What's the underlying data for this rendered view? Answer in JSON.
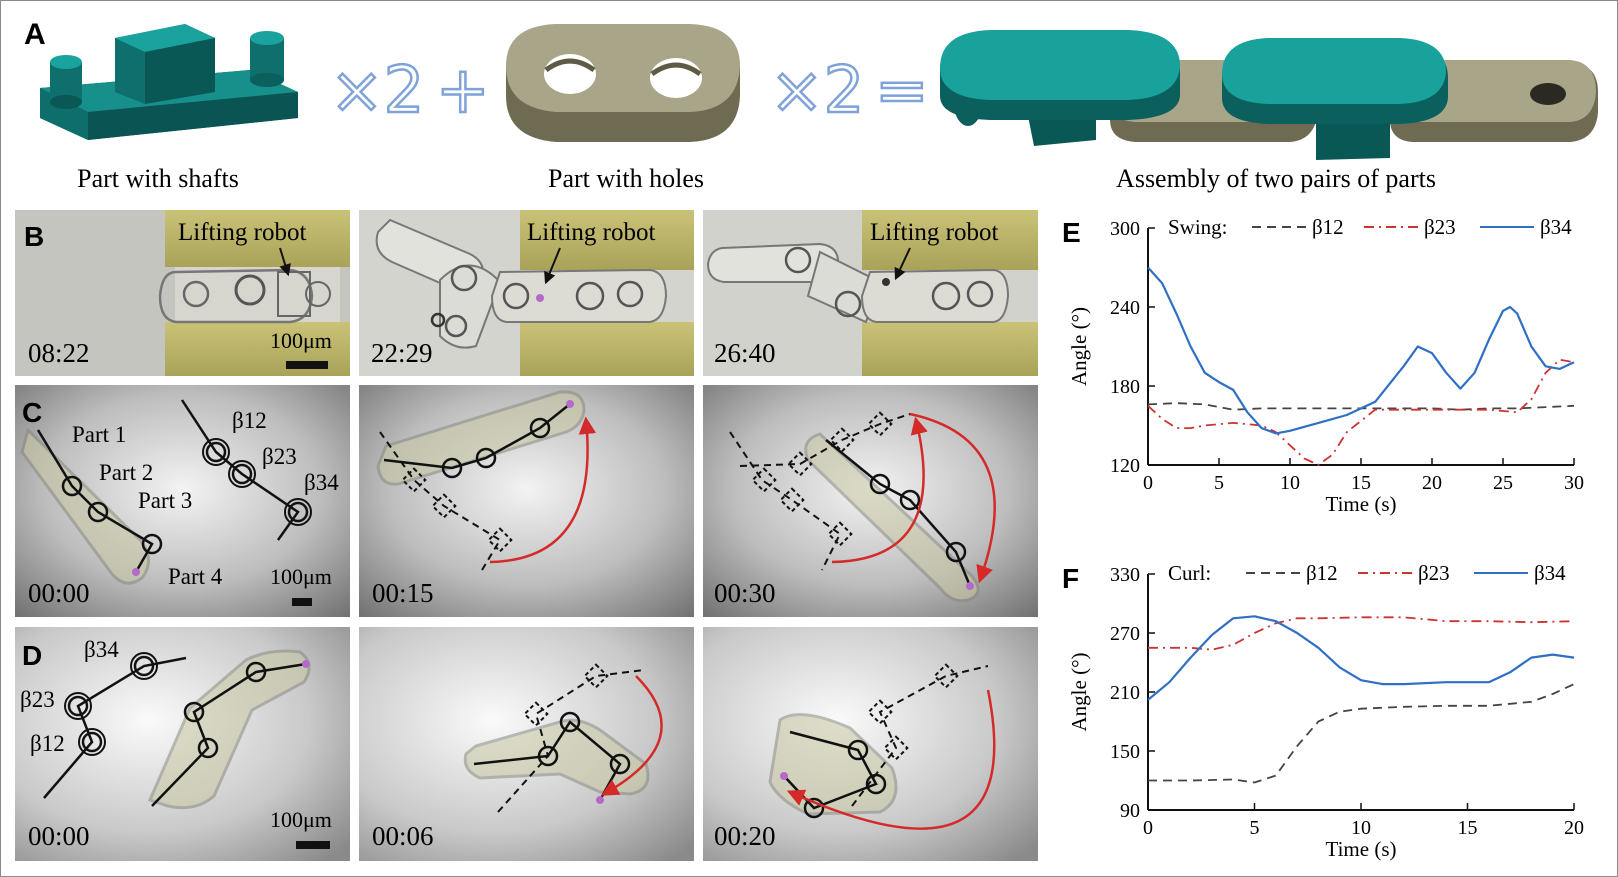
{
  "panelA": {
    "letter": "A",
    "op_times1": "×2",
    "op_plus": "+",
    "op_times2": "×2",
    "op_equals": "=",
    "caption_shafts": "Part with shafts",
    "caption_holes": "Part with holes",
    "caption_assembly": "Assembly of two pairs of  parts"
  },
  "panelB": {
    "letter": "B",
    "frames": [
      {
        "label": "Lifting robot",
        "time": "08:22",
        "scale": "100μm"
      },
      {
        "label": "Lifting robot",
        "time": "22:29"
      },
      {
        "label": "Lifting robot",
        "time": "26:40"
      }
    ]
  },
  "panelC": {
    "letter": "C",
    "parts": [
      "Part 1",
      "Part 2",
      "Part 3",
      "Part 4"
    ],
    "angles": [
      "β12",
      "β23",
      "β34"
    ],
    "scale": "100μm",
    "times": [
      "00:00",
      "00:15",
      "00:30"
    ]
  },
  "panelD": {
    "letter": "D",
    "angles": [
      "β34",
      "β23",
      "β12"
    ],
    "scale": "100μm",
    "times": [
      "00:00",
      "00:06",
      "00:20"
    ]
  },
  "colors": {
    "teal": "#0f7d7b",
    "khaki": "#8e8a6e",
    "red_arrow": "#d42a2a",
    "series_b12": "#444444",
    "series_b23": "#cc3333",
    "series_b34": "#2f6fc4"
  },
  "chart_data": [
    {
      "panel": "E",
      "type": "line",
      "legend_title": "Swing:",
      "xlabel": "Time (s)",
      "ylabel": "Angle (°)",
      "xlim": [
        0,
        30
      ],
      "ylim": [
        120,
        300
      ],
      "xticks": [
        0,
        5,
        10,
        15,
        20,
        25,
        30
      ],
      "yticks": [
        120,
        180,
        240,
        300
      ],
      "legend_position": "top",
      "series": [
        {
          "name": "β12",
          "style": "dashed",
          "x": [
            0,
            2,
            4,
            6,
            8,
            10,
            12,
            14,
            16,
            18,
            20,
            22,
            24,
            26,
            28,
            30
          ],
          "y": [
            166,
            167,
            166,
            162,
            163,
            163,
            163,
            163,
            163,
            163,
            163,
            162,
            163,
            163,
            164,
            165
          ]
        },
        {
          "name": "β23",
          "style": "dash-dot",
          "x": [
            0,
            1,
            2,
            3,
            4,
            6,
            8,
            9,
            10,
            11,
            12,
            13,
            14,
            16,
            20,
            24,
            26,
            27,
            28,
            29,
            30
          ],
          "y": [
            165,
            155,
            148,
            148,
            150,
            152,
            150,
            145,
            135,
            125,
            120,
            128,
            145,
            162,
            162,
            162,
            160,
            170,
            190,
            200,
            198
          ]
        },
        {
          "name": "β34",
          "style": "solid",
          "x": [
            0,
            1,
            2,
            3,
            4,
            5,
            6,
            7,
            8,
            9,
            10,
            12,
            14,
            16,
            18,
            19,
            20,
            21,
            22,
            23,
            24,
            25,
            25.5,
            26,
            27,
            28,
            29,
            30
          ],
          "y": [
            270,
            258,
            235,
            210,
            190,
            183,
            177,
            160,
            148,
            144,
            146,
            152,
            158,
            168,
            195,
            210,
            205,
            190,
            178,
            190,
            215,
            237,
            240,
            235,
            210,
            195,
            193,
            198
          ]
        }
      ]
    },
    {
      "panel": "F",
      "type": "line",
      "legend_title": "Curl:",
      "xlabel": "Time (s)",
      "ylabel": "Angle (°)",
      "xlim": [
        0,
        20
      ],
      "ylim": [
        90,
        330
      ],
      "xticks": [
        0,
        5,
        10,
        15,
        20
      ],
      "yticks": [
        90,
        150,
        210,
        270,
        330
      ],
      "legend_position": "top",
      "series": [
        {
          "name": "β12",
          "style": "dashed",
          "x": [
            0,
            2,
            4,
            5,
            6,
            7,
            8,
            9,
            10,
            12,
            14,
            16,
            17,
            18,
            19,
            20
          ],
          "y": [
            120,
            120,
            121,
            118,
            125,
            155,
            180,
            190,
            193,
            195,
            196,
            196,
            198,
            200,
            208,
            218
          ]
        },
        {
          "name": "β23",
          "style": "dash-dot",
          "x": [
            0,
            2,
            3,
            4,
            5,
            6,
            7,
            8,
            10,
            12,
            13,
            14,
            16,
            18,
            20
          ],
          "y": [
            255,
            255,
            253,
            258,
            270,
            280,
            285,
            285,
            286,
            286,
            284,
            282,
            282,
            281,
            282
          ]
        },
        {
          "name": "β34",
          "style": "solid",
          "x": [
            0,
            1,
            2,
            3,
            4,
            5,
            6,
            7,
            8,
            9,
            10,
            11,
            12,
            14,
            16,
            17,
            18,
            19,
            20
          ],
          "y": [
            202,
            220,
            245,
            268,
            285,
            287,
            282,
            270,
            255,
            235,
            222,
            218,
            218,
            220,
            220,
            230,
            245,
            248,
            245
          ]
        }
      ]
    }
  ]
}
